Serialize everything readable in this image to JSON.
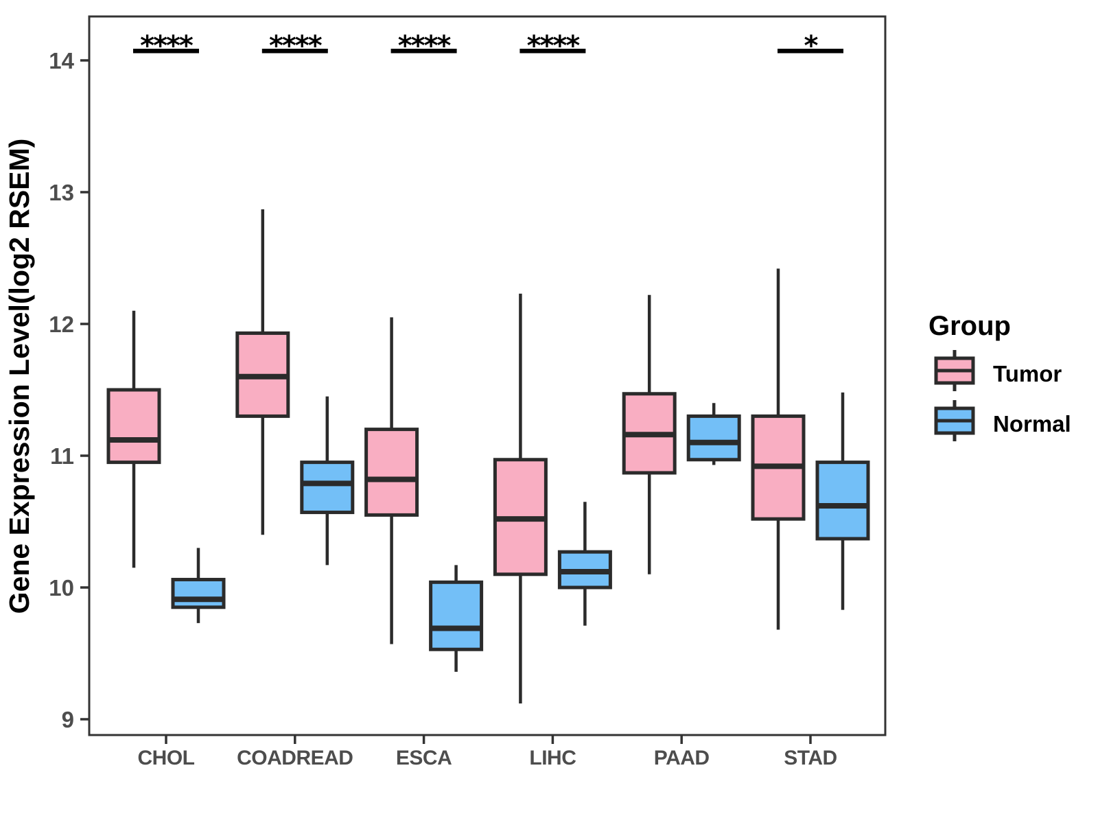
{
  "figure": {
    "background": "#ffffff"
  },
  "chart_data": {
    "type": "boxplot",
    "title": "",
    "xlabel": "",
    "ylabel": "Gene Expression Level(log2 RSEM)",
    "ylim": [
      8.88,
      14.35
    ],
    "yticks": [
      9,
      10,
      11,
      12,
      13,
      14
    ],
    "grid": false,
    "categories": [
      "CHOL",
      "COADREAD",
      "ESCA",
      "LIHC",
      "PAAD",
      "STAD"
    ],
    "legend": {
      "title": "Group",
      "position": "right",
      "entries": [
        {
          "label": "Tumor",
          "color": "#F9AEC2"
        },
        {
          "label": "Normal",
          "color": "#73BFF7"
        }
      ]
    },
    "significance": {
      "CHOL": "****",
      "COADREAD": "****",
      "ESCA": "****",
      "LIHC": "****",
      "PAAD": null,
      "STAD": "*"
    },
    "series": [
      {
        "name": "Tumor",
        "color": "#F9AEC2",
        "boxes": [
          {
            "category": "CHOL",
            "whisker_low": 10.15,
            "q1": 10.95,
            "median": 11.12,
            "q3": 11.5,
            "whisker_high": 12.1
          },
          {
            "category": "COADREAD",
            "whisker_low": 10.4,
            "q1": 11.3,
            "median": 11.6,
            "q3": 11.93,
            "whisker_high": 12.87
          },
          {
            "category": "ESCA",
            "whisker_low": 9.57,
            "q1": 10.55,
            "median": 10.82,
            "q3": 11.2,
            "whisker_high": 12.05
          },
          {
            "category": "LIHC",
            "whisker_low": 9.12,
            "q1": 10.1,
            "median": 10.52,
            "q3": 10.97,
            "whisker_high": 12.23
          },
          {
            "category": "PAAD",
            "whisker_low": 10.1,
            "q1": 10.87,
            "median": 11.16,
            "q3": 11.47,
            "whisker_high": 12.22
          },
          {
            "category": "STAD",
            "whisker_low": 9.68,
            "q1": 10.52,
            "median": 10.92,
            "q3": 11.3,
            "whisker_high": 12.42
          }
        ]
      },
      {
        "name": "Normal",
        "color": "#73BFF7",
        "boxes": [
          {
            "category": "CHOL",
            "whisker_low": 9.73,
            "q1": 9.85,
            "median": 9.91,
            "q3": 10.06,
            "whisker_high": 10.3
          },
          {
            "category": "COADREAD",
            "whisker_low": 10.17,
            "q1": 10.57,
            "median": 10.79,
            "q3": 10.95,
            "whisker_high": 11.45
          },
          {
            "category": "ESCA",
            "whisker_low": 9.36,
            "q1": 9.53,
            "median": 9.69,
            "q3": 10.04,
            "whisker_high": 10.17
          },
          {
            "category": "LIHC",
            "whisker_low": 9.71,
            "q1": 10.0,
            "median": 10.12,
            "q3": 10.27,
            "whisker_high": 10.65
          },
          {
            "category": "PAAD",
            "whisker_low": 10.93,
            "q1": 10.97,
            "median": 11.1,
            "q3": 11.3,
            "whisker_high": 11.4
          },
          {
            "category": "STAD",
            "whisker_low": 9.83,
            "q1": 10.37,
            "median": 10.62,
            "q3": 10.95,
            "whisker_high": 11.48
          }
        ]
      }
    ],
    "styles": {
      "box_border": "#2B2B2B",
      "axis_line": "#333333",
      "axis_text": "#4d4d4d",
      "significance_color": "#000000"
    }
  }
}
